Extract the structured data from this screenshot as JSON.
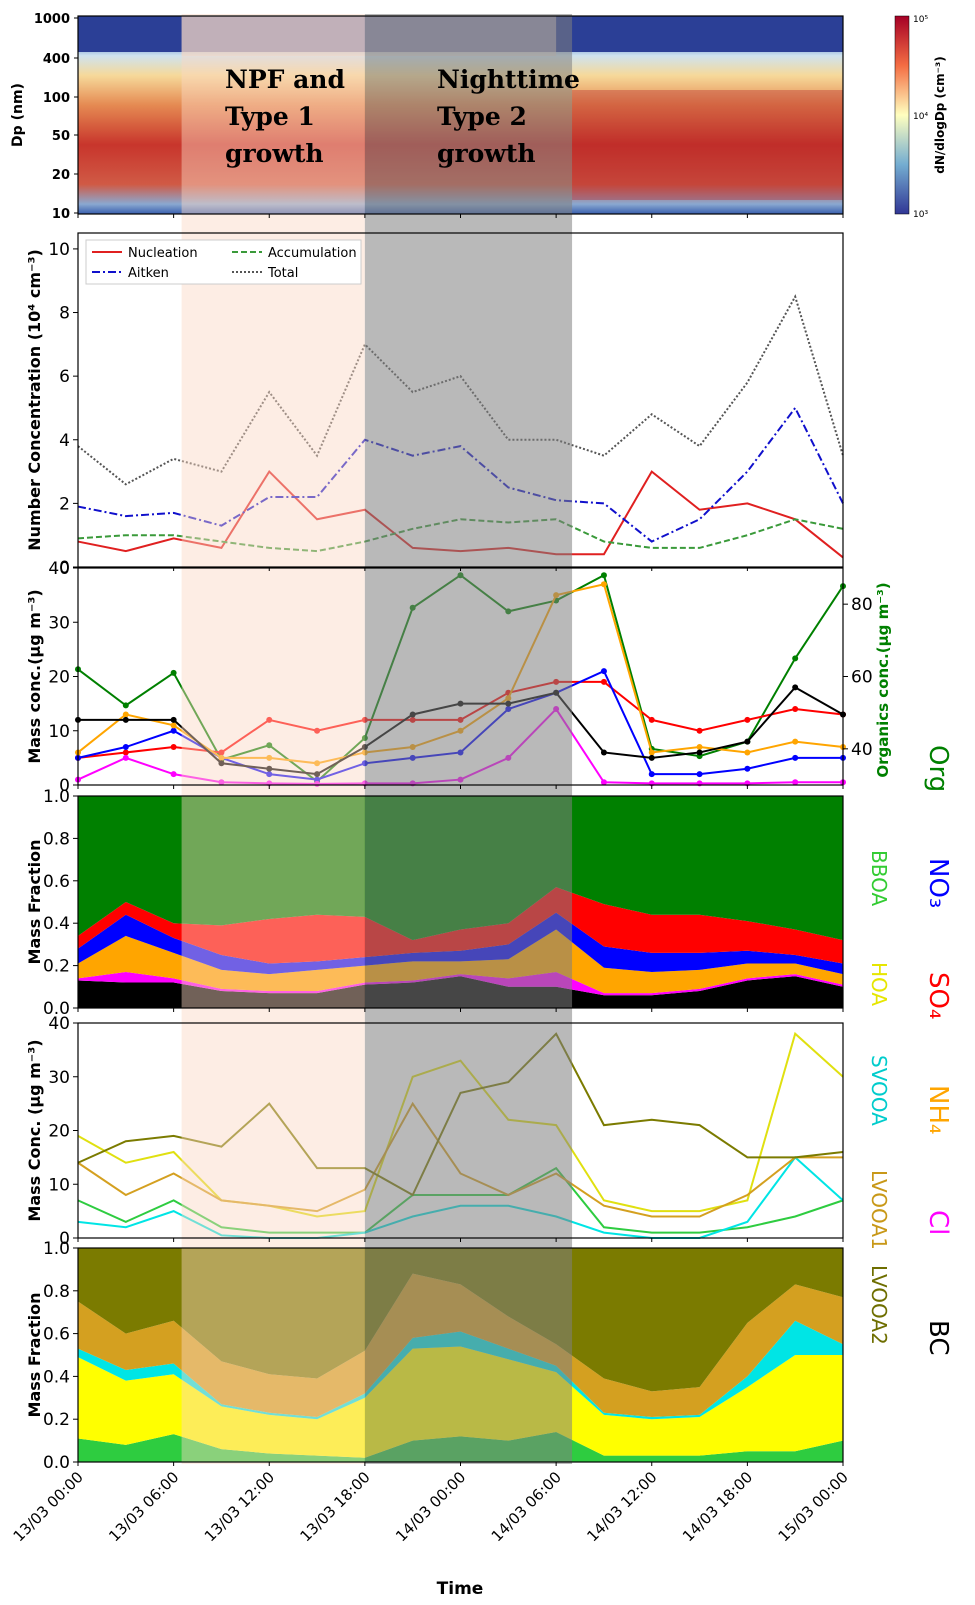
{
  "colors": {
    "Org": "#008000",
    "NO3": "#0000ff",
    "SO4": "#ff0000",
    "NH4": "#ffa500",
    "Cl": "#ff00ff",
    "BC": "#000000",
    "BBOA": "#2ecc40",
    "HOA": "#ffff00",
    "SVOOA": "#00e5e5",
    "LVOOA1": "#d4a020",
    "LVOOA2": "#7b7b00",
    "NPF": "rgba(250,215,195,0.45)",
    "Night": "rgba(128,128,128,0.55)"
  },
  "x_ticks": [
    "13/03 00:00",
    "13/03 06:00",
    "13/03 12:00",
    "13/03 18:00",
    "14/03 00:00",
    "14/03 06:00",
    "14/03 12:00",
    "14/03 18:00",
    "15/03 00:00"
  ],
  "x_label": "Time",
  "annotations": {
    "npf_1": "NPF and",
    "npf_2": "Type 1",
    "npf_3": "growth",
    "night_1": "Nighttime",
    "night_2": "Type 2",
    "night_3": "growth"
  },
  "panel1": {
    "ylabel": "Dp (nm)",
    "yticks": [
      "1000",
      "400",
      "100",
      "50",
      "20",
      "10"
    ],
    "cbar_label": "dN/dlogDp (cm⁻³)",
    "cbar_ticks": [
      "10⁵",
      "10⁴",
      "10³"
    ]
  },
  "panel2": {
    "ylabel": "Number Concentration (10⁴ cm⁻³)",
    "yticks": [
      "0",
      "2",
      "4",
      "6",
      "8",
      "10"
    ],
    "legend": [
      "Nucleation",
      "Accumulation",
      "Aitken",
      "Total"
    ]
  },
  "panel3": {
    "ylabel": "Mass conc.(μg m⁻³)",
    "ylabel_right": "Organics conc.(μg m⁻³)",
    "yticks": [
      "0",
      "10",
      "20",
      "30",
      "40"
    ],
    "yticks_right": [
      "40",
      "60",
      "80"
    ]
  },
  "panel4": {
    "ylabel": "Mass Fraction",
    "yticks": [
      "0.0",
      "0.2",
      "0.4",
      "0.6",
      "0.8",
      "1.0"
    ]
  },
  "panel5": {
    "ylabel": "Mass Conc. (μg m⁻³)",
    "yticks": [
      "0",
      "10",
      "20",
      "30",
      "40"
    ]
  },
  "panel6": {
    "ylabel": "Mass Fraction",
    "yticks": [
      "0.0",
      "0.2",
      "0.4",
      "0.6",
      "0.8",
      "1.0"
    ]
  },
  "side_labels": {
    "org": "Org",
    "no3": "NO₃",
    "so4": "SO₄",
    "nh4": "NH₄",
    "cl": "Cl",
    "bc": "BC",
    "bboa": "BBOA",
    "hoa": "HOA",
    "svooa": "SVOOA",
    "lvooa1": "LVOOA1",
    "lvooa2": "LVOOA2"
  },
  "chart_data": [
    {
      "type": "heatmap",
      "ylabel": "Dp (nm)",
      "y_scale": "log",
      "y_range_nm": [
        10,
        1000
      ],
      "colorbar_range": [
        1000,
        100000
      ]
    },
    {
      "type": "line",
      "ylabel": "Number Concentration (10^4 cm^-3)",
      "ylim": [
        0,
        10.5
      ],
      "x_hours": [
        0,
        3,
        6,
        9,
        12,
        15,
        18,
        21,
        24,
        27,
        30,
        33,
        36,
        39,
        42,
        45,
        48
      ],
      "series": [
        {
          "name": "Nucleation",
          "values": [
            0.8,
            0.5,
            0.9,
            0.6,
            3.0,
            1.5,
            1.8,
            0.6,
            0.5,
            0.6,
            0.4,
            0.4,
            3.0,
            1.8,
            2.0,
            1.5,
            0.3
          ]
        },
        {
          "name": "Aitken",
          "values": [
            1.9,
            1.6,
            1.7,
            1.3,
            2.2,
            2.2,
            4.0,
            3.5,
            3.8,
            2.5,
            2.1,
            2.0,
            0.8,
            1.5,
            3.0,
            5.0,
            2.0
          ]
        },
        {
          "name": "Accumulation",
          "values": [
            0.9,
            1.0,
            1.0,
            0.8,
            0.6,
            0.5,
            0.8,
            1.2,
            1.5,
            1.4,
            1.5,
            0.8,
            0.6,
            0.6,
            1.0,
            1.5,
            1.2
          ]
        },
        {
          "name": "Total",
          "values": [
            3.8,
            2.6,
            3.4,
            3.0,
            5.5,
            3.5,
            7.0,
            5.5,
            6.0,
            4.0,
            4.0,
            3.5,
            4.8,
            3.8,
            5.8,
            8.5,
            3.5
          ]
        }
      ]
    },
    {
      "type": "line",
      "ylabel": "Mass conc.(μg m^-3)",
      "ylim": [
        0,
        40
      ],
      "ylabel_right": "Organics conc.(μg m^-3)",
      "ylim_right": [
        30,
        90
      ],
      "x_hours": [
        0,
        3,
        6,
        9,
        12,
        15,
        18,
        21,
        24,
        27,
        30,
        33,
        36,
        39,
        42,
        45,
        48
      ],
      "series": [
        {
          "name": "Org",
          "axis": "right",
          "values": [
            62,
            52,
            61,
            37,
            41,
            31,
            43,
            79,
            88,
            78,
            81,
            88,
            40,
            38,
            42,
            65,
            85
          ]
        },
        {
          "name": "SO4",
          "values": [
            5,
            6,
            7,
            6,
            12,
            10,
            12,
            12,
            12,
            17,
            19,
            19,
            12,
            10,
            12,
            14,
            13
          ]
        },
        {
          "name": "NO3",
          "values": [
            5,
            7,
            10,
            5,
            2,
            1,
            4,
            5,
            6,
            14,
            17,
            21,
            2,
            2,
            3,
            5,
            5
          ]
        },
        {
          "name": "NH4",
          "values": [
            6,
            13,
            11,
            5,
            5,
            4,
            6,
            7,
            10,
            16,
            35,
            37,
            6,
            7,
            6,
            8,
            7
          ]
        },
        {
          "name": "Cl",
          "values": [
            1,
            5,
            2,
            0.5,
            0.3,
            0.2,
            0.3,
            0.3,
            1,
            5,
            14,
            0.5,
            0.3,
            0.3,
            0.3,
            0.5,
            0.5
          ]
        },
        {
          "name": "BC",
          "values": [
            12,
            12,
            12,
            4,
            3,
            2,
            7,
            13,
            15,
            15,
            17,
            6,
            5,
            6,
            8,
            18,
            13
          ]
        }
      ]
    },
    {
      "type": "area",
      "ylabel": "Mass Fraction",
      "ylim": [
        0,
        1
      ],
      "x_hours": [
        0,
        3,
        6,
        9,
        12,
        15,
        18,
        21,
        24,
        27,
        30,
        33,
        36,
        39,
        42,
        45,
        48
      ],
      "stack_order": [
        "BC",
        "Cl",
        "NH4",
        "NO3",
        "SO4",
        "Org"
      ],
      "series": [
        {
          "name": "BC",
          "values": [
            0.13,
            0.12,
            0.12,
            0.08,
            0.07,
            0.07,
            0.11,
            0.12,
            0.15,
            0.1,
            0.1,
            0.06,
            0.06,
            0.08,
            0.13,
            0.15,
            0.1
          ]
        },
        {
          "name": "Cl",
          "values": [
            0.01,
            0.05,
            0.02,
            0.01,
            0.01,
            0.01,
            0.01,
            0.01,
            0.01,
            0.04,
            0.07,
            0.01,
            0.01,
            0.01,
            0.01,
            0.01,
            0.01
          ]
        },
        {
          "name": "NH4",
          "values": [
            0.07,
            0.17,
            0.12,
            0.09,
            0.08,
            0.1,
            0.08,
            0.09,
            0.06,
            0.09,
            0.2,
            0.12,
            0.1,
            0.09,
            0.07,
            0.05,
            0.05
          ]
        },
        {
          "name": "NO3",
          "values": [
            0.07,
            0.1,
            0.07,
            0.07,
            0.05,
            0.04,
            0.04,
            0.04,
            0.05,
            0.07,
            0.08,
            0.1,
            0.09,
            0.08,
            0.06,
            0.04,
            0.05
          ]
        },
        {
          "name": "SO4",
          "values": [
            0.06,
            0.06,
            0.07,
            0.14,
            0.21,
            0.22,
            0.19,
            0.06,
            0.1,
            0.1,
            0.12,
            0.2,
            0.18,
            0.18,
            0.14,
            0.12,
            0.11
          ]
        },
        {
          "name": "Org",
          "values": [
            0.66,
            0.5,
            0.6,
            0.61,
            0.58,
            0.56,
            0.57,
            0.68,
            0.63,
            0.6,
            0.43,
            0.51,
            0.56,
            0.56,
            0.59,
            0.63,
            0.68
          ]
        }
      ]
    },
    {
      "type": "line",
      "ylabel": "Mass Conc. (μg m^-3)",
      "ylim": [
        0,
        40
      ],
      "x_hours": [
        0,
        3,
        6,
        9,
        12,
        15,
        18,
        21,
        24,
        27,
        30,
        33,
        36,
        39,
        42,
        45,
        48
      ],
      "series": [
        {
          "name": "BBOA",
          "values": [
            7,
            3,
            7,
            2,
            1,
            1,
            1,
            8,
            8,
            8,
            13,
            2,
            1,
            1,
            2,
            4,
            7
          ]
        },
        {
          "name": "HOA",
          "values": [
            19,
            14,
            16,
            7,
            6,
            4,
            5,
            30,
            33,
            22,
            21,
            7,
            5,
            5,
            7,
            38,
            30
          ]
        },
        {
          "name": "SVOOA",
          "values": [
            3,
            2,
            5,
            0.5,
            0,
            0,
            1,
            4,
            6,
            6,
            4,
            1,
            0,
            0,
            3,
            15,
            7
          ]
        },
        {
          "name": "LVOOA1",
          "values": [
            14,
            8,
            12,
            7,
            6,
            5,
            9,
            25,
            12,
            8,
            12,
            6,
            4,
            4,
            8,
            15,
            15
          ]
        },
        {
          "name": "LVOOA2",
          "values": [
            14,
            18,
            19,
            17,
            25,
            13,
            13,
            8,
            27,
            29,
            38,
            21,
            22,
            21,
            15,
            15,
            16
          ]
        }
      ]
    },
    {
      "type": "area",
      "ylabel": "Mass Fraction",
      "ylim": [
        0,
        1
      ],
      "x_hours": [
        0,
        3,
        6,
        9,
        12,
        15,
        18,
        21,
        24,
        27,
        30,
        33,
        36,
        39,
        42,
        45,
        48
      ],
      "stack_order": [
        "BBOA",
        "HOA",
        "SVOOA",
        "LVOOA1",
        "LVOOA2"
      ],
      "series": [
        {
          "name": "BBOA",
          "values": [
            0.11,
            0.08,
            0.13,
            0.06,
            0.04,
            0.03,
            0.02,
            0.1,
            0.12,
            0.1,
            0.14,
            0.03,
            0.03,
            0.03,
            0.05,
            0.05,
            0.1
          ]
        },
        {
          "name": "HOA",
          "values": [
            0.38,
            0.3,
            0.28,
            0.2,
            0.18,
            0.17,
            0.28,
            0.43,
            0.42,
            0.38,
            0.28,
            0.19,
            0.17,
            0.18,
            0.3,
            0.45,
            0.4
          ]
        },
        {
          "name": "SVOOA",
          "values": [
            0.04,
            0.05,
            0.05,
            0.01,
            0.01,
            0.01,
            0.02,
            0.05,
            0.07,
            0.05,
            0.03,
            0.01,
            0.01,
            0.01,
            0.05,
            0.16,
            0.05
          ]
        },
        {
          "name": "LVOOA1",
          "values": [
            0.22,
            0.17,
            0.2,
            0.2,
            0.18,
            0.18,
            0.2,
            0.3,
            0.22,
            0.15,
            0.1,
            0.16,
            0.12,
            0.13,
            0.25,
            0.17,
            0.22
          ]
        },
        {
          "name": "LVOOA2",
          "values": [
            0.25,
            0.4,
            0.34,
            0.53,
            0.59,
            0.61,
            0.48,
            0.12,
            0.17,
            0.32,
            0.45,
            0.61,
            0.67,
            0.65,
            0.35,
            0.17,
            0.23
          ]
        }
      ]
    }
  ]
}
